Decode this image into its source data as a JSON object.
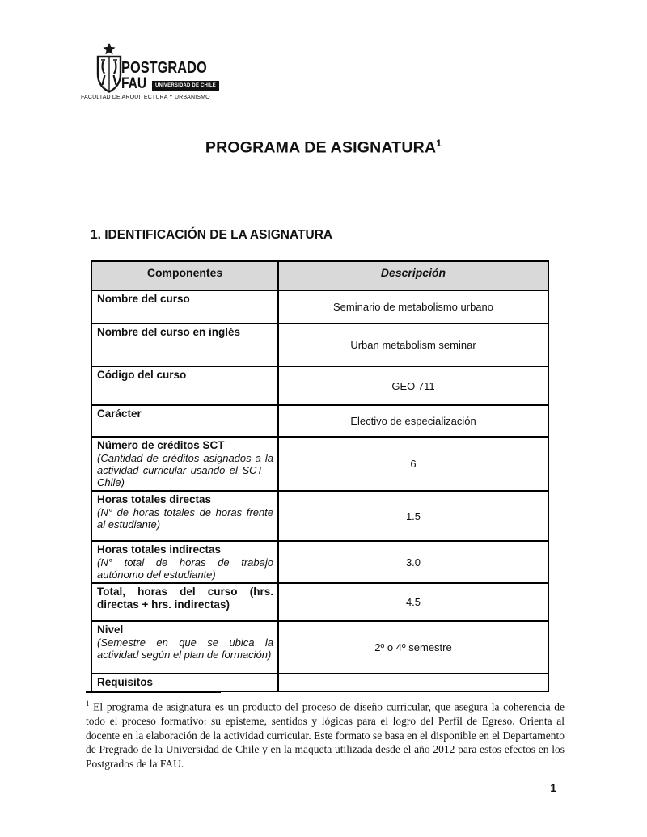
{
  "page": {
    "number": "1"
  },
  "logo": {
    "line1": "POSTGRADO",
    "line2": "FAU",
    "badge": "UNIVERSIDAD DE CHILE",
    "caption": "FACULTAD DE ARQUITECTURA Y URBANISMO",
    "crest_icon": "universidad-de-chile-crest"
  },
  "title": {
    "text": "PROGRAMA DE ASIGNATURA",
    "superscript": "1"
  },
  "section_heading": "1. IDENTIFICACIÓN DE LA ASIGNATURA",
  "table": {
    "headers": {
      "componentes": "Componentes",
      "descripcion": "Descripción"
    },
    "rows": [
      {
        "label": "Nombre del curso",
        "note": "",
        "value": "Seminario de metabolismo urbano"
      },
      {
        "label": "Nombre del curso en inglés",
        "note": "",
        "value": "Urban metabolism seminar"
      },
      {
        "label": "Código del curso",
        "note": "",
        "value": "GEO 711"
      },
      {
        "label": "Carácter",
        "note": "",
        "value": "Electivo de especialización"
      },
      {
        "label": "Número de créditos SCT",
        "note": "(Cantidad de créditos asignados a la actividad curricular usando el SCT – Chile)",
        "value": "6"
      },
      {
        "label": "Horas totales directas",
        "note": "(N° de horas totales de horas frente al estudiante)",
        "value": "1.5"
      },
      {
        "label": "Horas totales indirectas",
        "note": "(N° total de horas de trabajo autónomo del estudiante)",
        "value": "3.0"
      },
      {
        "label": "Total, horas del curso (hrs. directas + hrs. indirectas)",
        "note": "",
        "value": "4.5"
      },
      {
        "label": "Nivel",
        "note": "(Semestre en que se ubica la actividad según el plan de formación)",
        "value": "2º o 4º semestre"
      },
      {
        "label": "Requisitos",
        "note": "",
        "value": ""
      }
    ]
  },
  "footnote": {
    "marker": "1",
    "text": "El programa de asignatura es un producto del proceso de diseño curricular, que asegura la coherencia de todo el proceso formativo: su episteme, sentidos y lógicas para el logro del Perfil de Egreso. Orienta al docente en la elaboración de la actividad curricular. Este formato se basa en el disponible en el Departamento de Pregrado de la Universidad de Chile y en la maqueta utilizada desde el año 2012 para estos efectos en los Postgrados de la FAU."
  },
  "colors": {
    "table_header_fill": "#d9d9d9",
    "table_border": "#000000",
    "text": "#1a1a1a",
    "badge_background": "#111111",
    "badge_text": "#ffffff"
  }
}
